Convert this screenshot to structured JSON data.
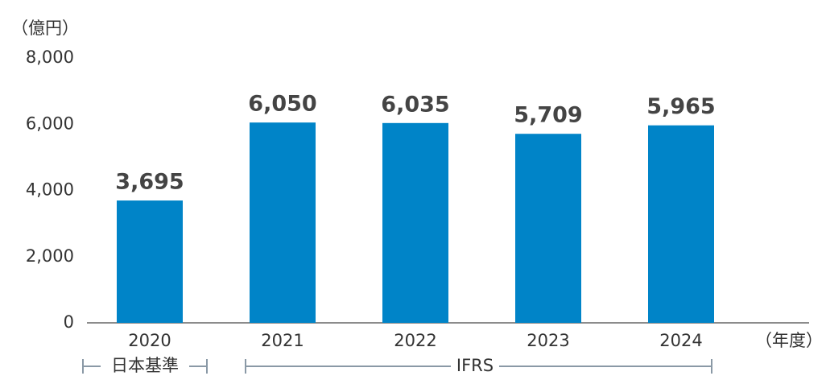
{
  "chart_data": {
    "type": "bar",
    "y_unit": "（億円）",
    "x_unit": "（年度）",
    "categories": [
      "2020",
      "2021",
      "2022",
      "2023",
      "2024"
    ],
    "values": [
      3695,
      6050,
      6035,
      5709,
      5965
    ],
    "value_labels": [
      "3,695",
      "6,050",
      "6,035",
      "5,709",
      "5,965"
    ],
    "color": "#0084c8",
    "ylim": [
      0,
      8000
    ],
    "yticks": [
      0,
      {
        "value": 2000,
        "label": "2,000"
      },
      {
        "value": 4000,
        "label": "4,000"
      },
      {
        "value": 6000,
        "label": "6,000"
      },
      {
        "value": 8000,
        "label": "8,000"
      }
    ],
    "annotations": [
      "日本基準",
      "IFRS"
    ]
  }
}
